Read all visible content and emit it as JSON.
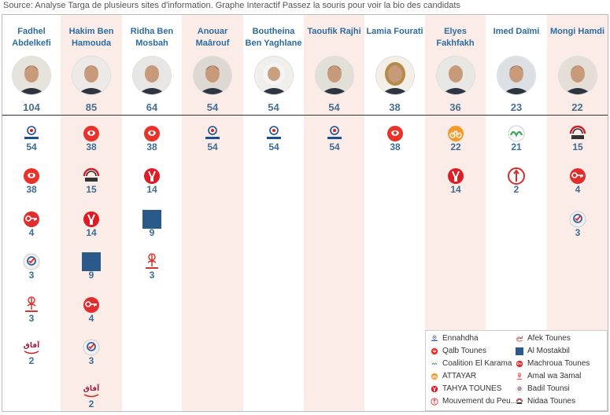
{
  "source_text": "Source: Analyse Targa de plusieurs sites d'information. Graphe Interactif Passez la souris pour voir la bio des candidats",
  "colors": {
    "Ennahdha": "#1c4f8f",
    "Qalb Tounes": "#e8332a",
    "Coalition El Karama": "#3aa85a",
    "ATTAYAR": "#f39a2b",
    "TAHYA TOUNES": "#e01b24",
    "Mouvement du Peuple": "#d42e2e",
    "Afek Tounes": "#9a1d3c",
    "Al Mostakbil": "#2a5a8a",
    "Machroua Tounes": "#e02d2d",
    "Amal wa 3amal": "#d6362e",
    "Badil Tounsi": "#3d5f8a",
    "Nidaa Tounes": "#cc1f2a"
  },
  "chart_data": {
    "type": "table",
    "candidates": [
      {
        "name": "Fadhel Abdelkefi",
        "total": 104,
        "shaded": false,
        "parties": [
          {
            "party": "Ennahdha",
            "value": 54
          },
          {
            "party": "Qalb Tounes",
            "value": 38
          },
          {
            "party": "Machroua Tounes",
            "value": 4
          },
          {
            "party": "Badil Tounsi",
            "value": 3
          },
          {
            "party": "Amal wa 3amal",
            "value": 3
          },
          {
            "party": "Afek Tounes",
            "value": 2
          }
        ]
      },
      {
        "name": "Hakim Ben Hamouda",
        "total": 85,
        "shaded": true,
        "parties": [
          {
            "party": "Qalb Tounes",
            "value": 38
          },
          {
            "party": "Nidaa Tounes",
            "value": 15
          },
          {
            "party": "TAHYA TOUNES",
            "value": 14
          },
          {
            "party": "Al Mostakbil",
            "value": 9
          },
          {
            "party": "Machroua Tounes",
            "value": 4
          },
          {
            "party": "Badil Tounsi",
            "value": 3
          },
          {
            "party": "Afek Tounes",
            "value": 2
          }
        ]
      },
      {
        "name": "Ridha Ben Mosbah",
        "total": 64,
        "shaded": false,
        "parties": [
          {
            "party": "Qalb Tounes",
            "value": 38
          },
          {
            "party": "TAHYA TOUNES",
            "value": 14
          },
          {
            "party": "Al Mostakbil",
            "value": 9
          },
          {
            "party": "Amal wa 3amal",
            "value": 3
          }
        ]
      },
      {
        "name": "Anouar Maârouf",
        "total": 54,
        "shaded": true,
        "parties": [
          {
            "party": "Ennahdha",
            "value": 54
          }
        ]
      },
      {
        "name": "Boutheina Ben Yaghlane",
        "total": 54,
        "shaded": false,
        "parties": [
          {
            "party": "Ennahdha",
            "value": 54
          }
        ]
      },
      {
        "name": "Taoufik Rajhi",
        "total": 54,
        "shaded": true,
        "parties": [
          {
            "party": "Ennahdha",
            "value": 54
          }
        ]
      },
      {
        "name": "Lamia Fourati",
        "total": 38,
        "shaded": false,
        "parties": [
          {
            "party": "Qalb Tounes",
            "value": 38
          }
        ]
      },
      {
        "name": "Elyes Fakhfakh",
        "total": 36,
        "shaded": true,
        "parties": [
          {
            "party": "ATTAYAR",
            "value": 22
          },
          {
            "party": "TAHYA TOUNES",
            "value": 14
          }
        ]
      },
      {
        "name": "Imed Daïmi",
        "total": 23,
        "shaded": false,
        "parties": [
          {
            "party": "Coalition El Karama",
            "value": 21
          },
          {
            "party": "Mouvement du Peuple",
            "value": 2
          }
        ]
      },
      {
        "name": "Mongi Hamdi",
        "total": 22,
        "shaded": true,
        "parties": [
          {
            "party": "Nidaa Tounes",
            "value": 15
          },
          {
            "party": "Machroua Tounes",
            "value": 4
          },
          {
            "party": "Badil Tounsi",
            "value": 3
          }
        ]
      }
    ],
    "legend": {
      "placement": "bottom-right",
      "entries": [
        "Ennahdha",
        "Afek Tounes",
        "Qalb Tounes",
        "Al Mostakbil",
        "Coalition El Karama",
        "Machroua Tounes",
        "ATTAYAR",
        "Amal wa 3amal",
        "TAHYA TOUNES",
        "Badil Tounsi",
        "Mouvement du Peu...",
        "Nidaa Tounes"
      ],
      "entry_parties": [
        "Ennahdha",
        "Afek Tounes",
        "Qalb Tounes",
        "Al Mostakbil",
        "Coalition El Karama",
        "Machroua Tounes",
        "ATTAYAR",
        "Amal wa 3amal",
        "TAHYA TOUNES",
        "Badil Tounsi",
        "Mouvement du Peuple",
        "Nidaa Tounes"
      ]
    }
  }
}
